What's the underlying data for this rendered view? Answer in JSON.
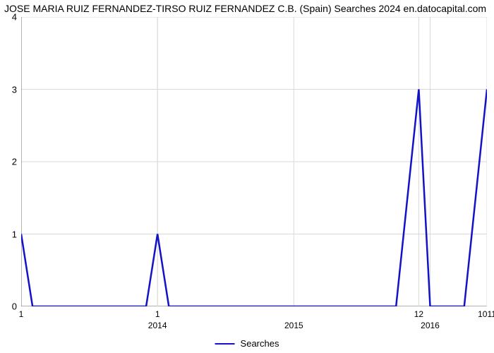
{
  "title": "JOSE MARIA RUIZ FERNANDEZ-TIRSO RUIZ FERNANDEZ C.B. (Spain) Searches 2024 en.datocapital.com",
  "chart": {
    "type": "line",
    "background_color": "#ffffff",
    "grid_color": "#d9d9d9",
    "axis_color": "#808080",
    "line_color": "#1212c9",
    "line_width": 2.5,
    "ylim": [
      0,
      4
    ],
    "yticks": [
      0,
      1,
      2,
      3,
      4
    ],
    "xlim": [
      0,
      41
    ],
    "xticks_primary": [
      {
        "x": 0,
        "label": "1"
      },
      {
        "x": 12,
        "label": "1"
      },
      {
        "x": 35,
        "label": "12"
      },
      {
        "x": 41,
        "label": "1011"
      }
    ],
    "xticks_years": [
      {
        "x": 12,
        "label": "2014"
      },
      {
        "x": 24,
        "label": "2015"
      },
      {
        "x": 36,
        "label": "2016"
      }
    ],
    "points": [
      {
        "x": 0,
        "y": 1
      },
      {
        "x": 1,
        "y": 0
      },
      {
        "x": 11,
        "y": 0
      },
      {
        "x": 12,
        "y": 1
      },
      {
        "x": 13,
        "y": 0
      },
      {
        "x": 33,
        "y": 0
      },
      {
        "x": 35,
        "y": 3
      },
      {
        "x": 36,
        "y": 0
      },
      {
        "x": 39,
        "y": 0
      },
      {
        "x": 41,
        "y": 3
      }
    ],
    "title_fontsize": 14,
    "tick_fontsize": 12
  },
  "legend": {
    "label": "Searches"
  }
}
